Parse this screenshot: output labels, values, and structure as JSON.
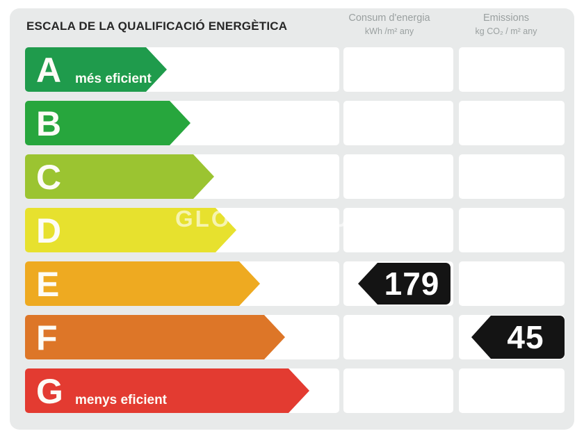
{
  "title": "ESCALA DE LA QUALIFICACIÓ ENERGÈTICA",
  "columns": [
    {
      "line1": "Consum d'energia",
      "line2": "kWh /m²  any"
    },
    {
      "line1": "Emissions",
      "line2": "kg CO₂ / m²  any"
    }
  ],
  "rows": [
    {
      "letter": "A",
      "label": "més eficient",
      "color": "#1f9b4c",
      "arrow_width": 204,
      "consum": "",
      "emissions": ""
    },
    {
      "letter": "B",
      "label": "",
      "color": "#27a63d",
      "arrow_width": 238,
      "consum": "",
      "emissions": ""
    },
    {
      "letter": "C",
      "label": "",
      "color": "#9bc431",
      "arrow_width": 272,
      "consum": "",
      "emissions": ""
    },
    {
      "letter": "D",
      "label": "",
      "color": "#e7e12e",
      "arrow_width": 304,
      "consum": "",
      "emissions": ""
    },
    {
      "letter": "E",
      "label": "",
      "color": "#eeaa21",
      "arrow_width": 338,
      "consum": "179",
      "emissions": ""
    },
    {
      "letter": "F",
      "label": "",
      "color": "#dd7628",
      "arrow_width": 374,
      "consum": "",
      "emissions": "45"
    },
    {
      "letter": "G",
      "label": "menys eficient",
      "color": "#e33b31",
      "arrow_width": 409,
      "consum": "",
      "emissions": ""
    }
  ],
  "badge_color": "#141414",
  "panel_color": "#e8eaea",
  "watermark": "GLOBAL-HAUS.NET",
  "chart_data": {
    "type": "table",
    "title": "ESCALA DE LA QUALIFICACIÓ ENERGÈTICA",
    "categories": [
      "A",
      "B",
      "C",
      "D",
      "E",
      "F",
      "G"
    ],
    "category_labels": {
      "A": "més eficient",
      "G": "menys eficient"
    },
    "series": [
      {
        "name": "Consum d'energia (kWh/m² any)",
        "rating": "E",
        "value": 179
      },
      {
        "name": "Emissions (kg CO₂/m² any)",
        "rating": "F",
        "value": 45
      }
    ],
    "legend_position": "none",
    "grid": false
  }
}
